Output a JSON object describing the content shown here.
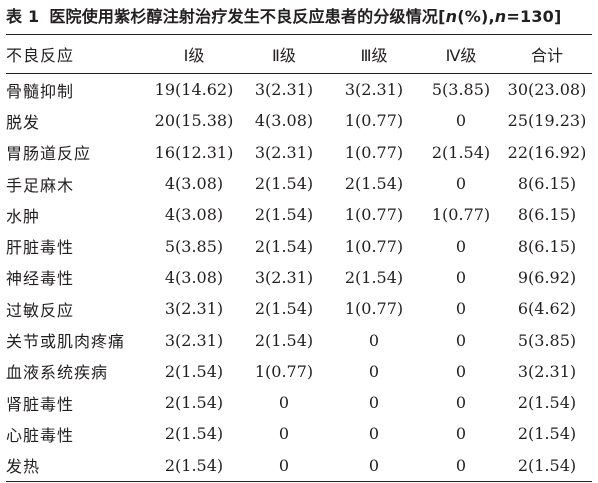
{
  "caption": {
    "label": "表 1",
    "title": "医院使用紫杉醇注射治疗发生不良反应患者的分级情况",
    "stats_open": "[",
    "n_symbol": "n",
    "percent_part": "(%),",
    "n_eq_symbol": "n",
    "n_eq_value": "=130]"
  },
  "table": {
    "headers": [
      "不良反应",
      "Ⅰ级",
      "Ⅱ级",
      "Ⅲ级",
      "Ⅳ级",
      "合计"
    ],
    "rows": [
      [
        "骨髓抑制",
        "19(14.62)",
        "3(2.31)",
        "3(2.31)",
        "5(3.85)",
        "30(23.08)"
      ],
      [
        "脱发",
        "20(15.38)",
        "4(3.08)",
        "1(0.77)",
        "0",
        "25(19.23)"
      ],
      [
        "胃肠道反应",
        "16(12.31)",
        "3(2.31)",
        "1(0.77)",
        "2(1.54)",
        "22(16.92)"
      ],
      [
        "手足麻木",
        "4(3.08)",
        "2(1.54)",
        "2(1.54)",
        "0",
        "8(6.15)"
      ],
      [
        "水肿",
        "4(3.08)",
        "2(1.54)",
        "1(0.77)",
        "1(0.77)",
        "8(6.15)"
      ],
      [
        "肝脏毒性",
        "5(3.85)",
        "2(1.54)",
        "1(0.77)",
        "0",
        "8(6.15)"
      ],
      [
        "神经毒性",
        "4(3.08)",
        "3(2.31)",
        "2(1.54)",
        "0",
        "9(6.92)"
      ],
      [
        "过敏反应",
        "3(2.31)",
        "2(1.54)",
        "1(0.77)",
        "0",
        "6(4.62)"
      ],
      [
        "关节或肌肉疼痛",
        "3(2.31)",
        "2(1.54)",
        "0",
        "0",
        "5(3.85)"
      ],
      [
        "血液系统疾病",
        "2(1.54)",
        "1(0.77)",
        "0",
        "0",
        "3(2.31)"
      ],
      [
        "肾脏毒性",
        "2(1.54)",
        "0",
        "0",
        "0",
        "2(1.54)"
      ],
      [
        "心脏毒性",
        "2(1.54)",
        "0",
        "0",
        "0",
        "2(1.54)"
      ],
      [
        "发热",
        "2(1.54)",
        "0",
        "0",
        "0",
        "2(1.54)"
      ]
    ]
  }
}
